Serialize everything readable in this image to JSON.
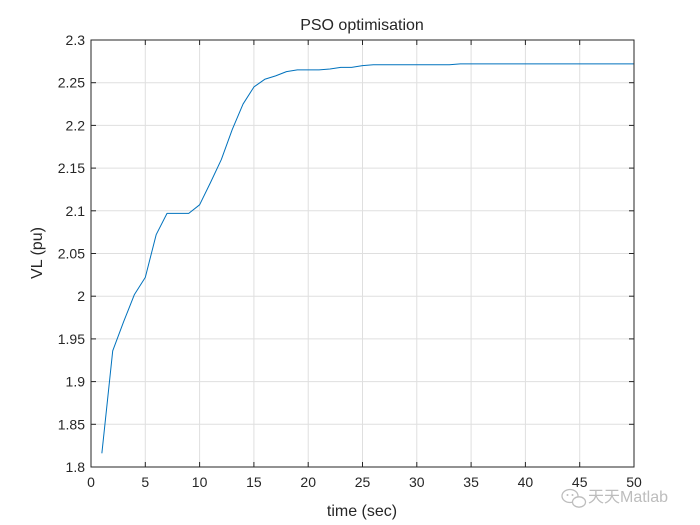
{
  "chart_data": {
    "type": "line",
    "title": "PSO optimisation",
    "xlabel": "time (sec)",
    "ylabel": "VL (pu)",
    "xlim": [
      0,
      50
    ],
    "ylim": [
      1.8,
      2.3
    ],
    "xticks": [
      0,
      5,
      10,
      15,
      20,
      25,
      30,
      35,
      40,
      45,
      50
    ],
    "yticks": [
      1.8,
      1.85,
      1.9,
      1.95,
      2,
      2.05,
      2.1,
      2.15,
      2.2,
      2.25,
      2.3
    ],
    "xtick_labels": [
      "0",
      "5",
      "10",
      "15",
      "20",
      "25",
      "30",
      "35",
      "40",
      "45",
      "50"
    ],
    "ytick_labels": [
      "1.8",
      "1.85",
      "1.9",
      "1.95",
      "2",
      "2.05",
      "2.1",
      "2.15",
      "2.2",
      "2.25",
      "2.3"
    ],
    "grid": true,
    "series": [
      {
        "color": "#0072BD",
        "x": [
          1,
          2,
          3,
          4,
          5,
          6,
          7,
          8,
          9,
          10,
          11,
          12,
          13,
          14,
          15,
          16,
          17,
          18,
          19,
          20,
          21,
          22,
          23,
          24,
          25,
          26,
          27,
          28,
          29,
          30,
          31,
          32,
          33,
          34,
          35,
          36,
          37,
          38,
          39,
          40,
          41,
          42,
          43,
          44,
          45,
          46,
          47,
          48,
          49,
          50
        ],
        "y": [
          1.816,
          1.936,
          1.97,
          2.002,
          2.022,
          2.072,
          2.097,
          2.097,
          2.097,
          2.107,
          2.133,
          2.16,
          2.195,
          2.225,
          2.245,
          2.254,
          2.258,
          2.263,
          2.265,
          2.265,
          2.265,
          2.266,
          2.268,
          2.268,
          2.27,
          2.271,
          2.271,
          2.271,
          2.271,
          2.271,
          2.271,
          2.271,
          2.271,
          2.272,
          2.272,
          2.272,
          2.272,
          2.272,
          2.272,
          2.272,
          2.272,
          2.272,
          2.272,
          2.272,
          2.272,
          2.272,
          2.272,
          2.272,
          2.272,
          2.272
        ]
      }
    ]
  },
  "watermark": {
    "text": "天天Matlab",
    "icon": "wechat-icon"
  }
}
